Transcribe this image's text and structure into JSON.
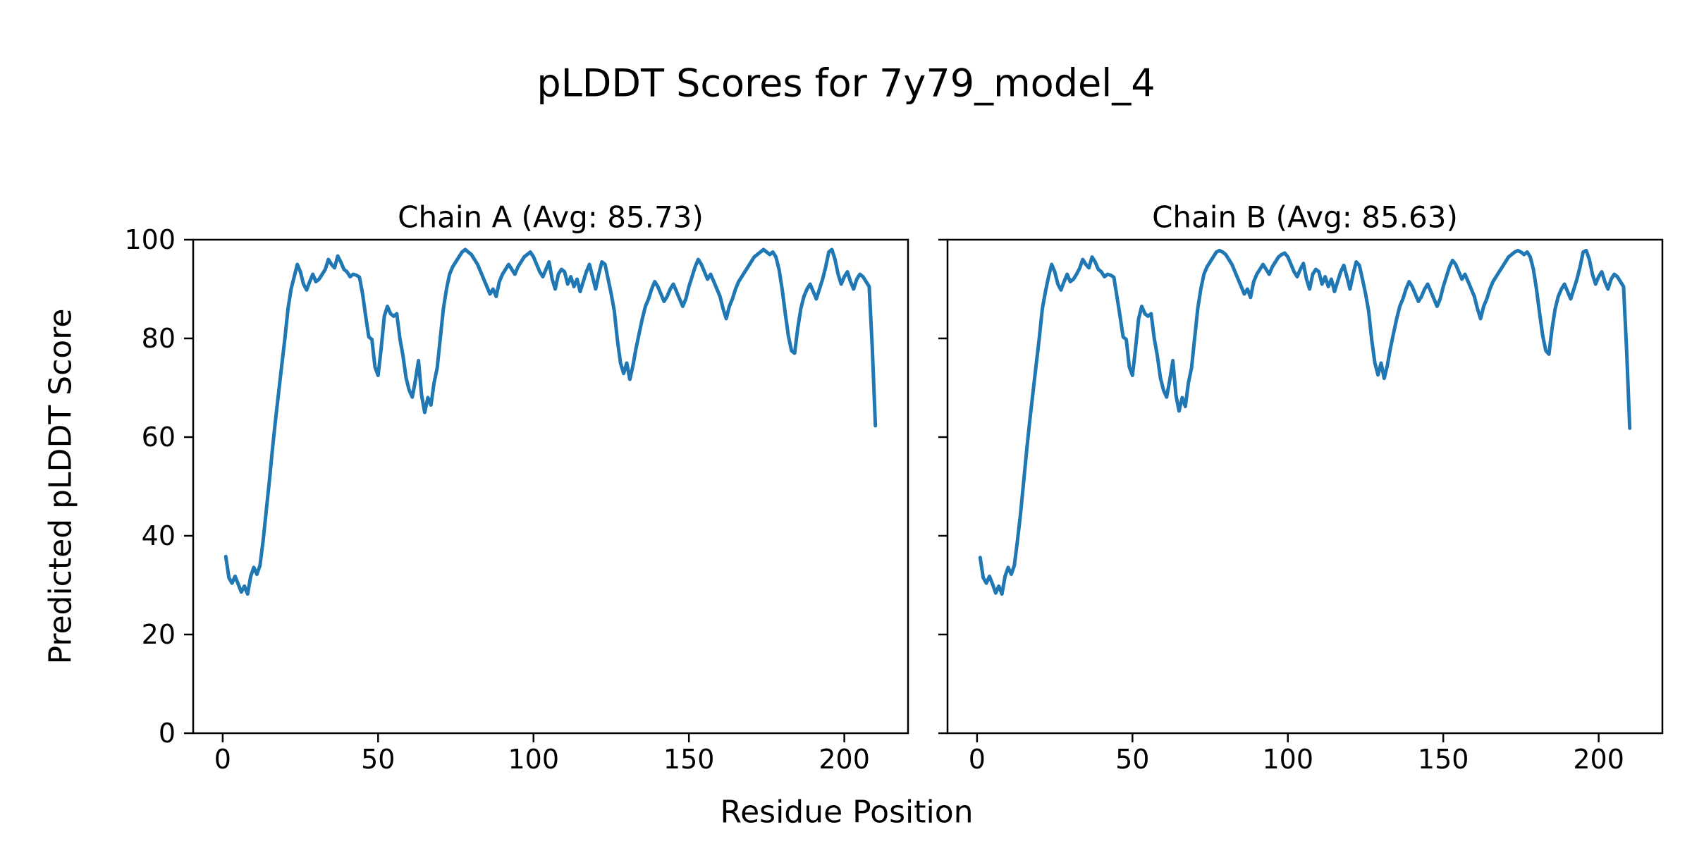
{
  "figure": {
    "title": "pLDDT Scores for 7y79_model_4",
    "xlabel": "Residue Position",
    "ylabel": "Predicted pLDDT Score",
    "background_color": "#ffffff",
    "text_color": "#000000",
    "spine_color": "#000000"
  },
  "chart_data": [
    {
      "type": "line",
      "title": "Chain A (Avg: 85.73)",
      "chain": "A",
      "average_plddt": 85.73,
      "line_color": "#1f77b4",
      "xlim": [
        -9.5,
        220.5
      ],
      "ylim": [
        0,
        100
      ],
      "xticks": [
        0,
        50,
        100,
        150,
        200
      ],
      "yticks": [
        0,
        20,
        40,
        60,
        80,
        100
      ],
      "show_ytick_labels": true,
      "x_start": 1,
      "values": [
        35.8,
        31.5,
        30.4,
        31.8,
        30.2,
        28.6,
        29.8,
        28.2,
        31.8,
        33.6,
        32.2,
        34.0,
        39.0,
        45.0,
        51.0,
        57.5,
        63.5,
        69.0,
        74.5,
        80.0,
        86.0,
        90.0,
        92.5,
        95.0,
        93.5,
        91.0,
        89.8,
        91.5,
        93.0,
        91.5,
        92.0,
        93.0,
        94.0,
        96.0,
        95.0,
        94.3,
        96.7,
        95.5,
        94.0,
        93.5,
        92.5,
        93.0,
        92.8,
        92.4,
        89.0,
        84.5,
        80.3,
        79.8,
        74.2,
        72.5,
        78.0,
        84.5,
        86.5,
        85.0,
        84.5,
        85.0,
        80.0,
        76.5,
        72.0,
        69.5,
        68.1,
        71.5,
        75.5,
        68.5,
        65.0,
        68.0,
        66.5,
        71.0,
        74.0,
        80.0,
        86.0,
        90.0,
        93.0,
        94.5,
        95.5,
        96.5,
        97.5,
        98.0,
        97.5,
        97.0,
        96.0,
        95.0,
        93.5,
        92.0,
        90.5,
        89.0,
        90.0,
        88.5,
        91.5,
        93.0,
        94.0,
        95.0,
        94.0,
        93.0,
        94.5,
        95.5,
        96.5,
        97.0,
        97.5,
        96.5,
        95.0,
        93.5,
        92.5,
        94.0,
        95.5,
        92.0,
        90.0,
        93.0,
        94.0,
        93.5,
        91.0,
        92.5,
        90.5,
        92.0,
        89.5,
        91.5,
        93.5,
        95.0,
        92.5,
        90.0,
        93.0,
        95.5,
        95.0,
        92.0,
        89.0,
        85.5,
        79.6,
        75.0,
        72.9,
        75.0,
        71.7,
        74.5,
        78.0,
        81.0,
        84.0,
        86.5,
        88.0,
        90.0,
        91.5,
        90.5,
        89.0,
        87.5,
        88.5,
        90.0,
        91.0,
        89.5,
        88.0,
        86.5,
        88.0,
        90.5,
        92.5,
        94.5,
        96.0,
        95.0,
        93.5,
        92.0,
        93.0,
        91.5,
        90.0,
        88.5,
        86.0,
        84.0,
        86.5,
        88.0,
        90.0,
        91.5,
        92.5,
        93.5,
        94.5,
        95.5,
        96.5,
        97.0,
        97.5,
        98.0,
        97.5,
        97.0,
        97.5,
        96.5,
        94.0,
        90.0,
        85.0,
        80.5,
        77.5,
        77.0,
        82.0,
        86.0,
        88.5,
        90.0,
        91.0,
        89.5,
        88.0,
        90.0,
        92.0,
        94.5,
        97.5,
        98.0,
        96.0,
        93.0,
        91.0,
        92.5,
        93.5,
        91.5,
        90.0,
        92.0,
        93.0,
        92.5,
        91.5,
        90.5,
        78.0,
        62.3
      ]
    },
    {
      "type": "line",
      "title": "Chain B (Avg: 85.63)",
      "chain": "B",
      "average_plddt": 85.63,
      "line_color": "#1f77b4",
      "xlim": [
        -9.5,
        220.5
      ],
      "ylim": [
        0,
        100
      ],
      "xticks": [
        0,
        50,
        100,
        150,
        200
      ],
      "yticks": [
        0,
        20,
        40,
        60,
        80,
        100
      ],
      "show_ytick_labels": false,
      "x_start": 1,
      "values": [
        35.6,
        31.5,
        30.4,
        31.8,
        30.2,
        28.4,
        29.8,
        28.2,
        31.8,
        33.6,
        32.2,
        34.0,
        39.0,
        44.5,
        51.0,
        57.5,
        63.5,
        69.0,
        74.5,
        80.0,
        86.0,
        89.5,
        92.5,
        95.0,
        93.5,
        91.0,
        89.8,
        91.5,
        93.0,
        91.5,
        92.0,
        93.0,
        94.2,
        96.0,
        95.0,
        94.3,
        96.5,
        95.5,
        94.0,
        93.5,
        92.5,
        93.0,
        92.8,
        92.4,
        88.5,
        84.5,
        80.3,
        79.8,
        74.2,
        72.5,
        78.0,
        84.0,
        86.5,
        85.0,
        84.5,
        85.0,
        80.0,
        76.5,
        72.0,
        69.5,
        68.1,
        71.5,
        75.5,
        68.5,
        65.3,
        68.0,
        66.2,
        71.0,
        74.0,
        80.0,
        86.0,
        90.0,
        93.0,
        94.5,
        95.5,
        96.5,
        97.5,
        97.8,
        97.5,
        97.0,
        96.0,
        95.0,
        93.5,
        92.0,
        90.5,
        89.0,
        90.0,
        88.3,
        91.5,
        93.0,
        94.0,
        95.0,
        94.0,
        93.0,
        94.5,
        95.5,
        96.5,
        97.0,
        97.3,
        96.5,
        95.0,
        93.5,
        92.5,
        94.0,
        95.2,
        92.0,
        90.0,
        93.0,
        94.0,
        93.5,
        91.0,
        92.5,
        90.5,
        92.0,
        89.5,
        91.5,
        93.5,
        94.8,
        92.5,
        90.0,
        93.0,
        95.5,
        94.8,
        92.0,
        89.0,
        85.5,
        79.6,
        75.0,
        72.6,
        75.0,
        71.9,
        74.5,
        78.0,
        81.0,
        84.0,
        86.5,
        88.0,
        90.0,
        91.5,
        90.5,
        89.0,
        87.5,
        88.5,
        90.0,
        91.0,
        89.5,
        88.0,
        86.5,
        88.0,
        90.5,
        92.5,
        94.5,
        95.8,
        95.0,
        93.5,
        92.0,
        93.0,
        91.5,
        90.0,
        88.5,
        86.0,
        84.0,
        86.5,
        88.0,
        90.0,
        91.5,
        92.5,
        93.5,
        94.5,
        95.5,
        96.5,
        97.0,
        97.5,
        97.8,
        97.5,
        97.0,
        97.5,
        96.5,
        94.0,
        90.0,
        85.0,
        80.5,
        77.5,
        76.8,
        82.0,
        86.0,
        88.5,
        90.0,
        91.0,
        89.5,
        88.0,
        90.0,
        92.0,
        94.5,
        97.5,
        97.8,
        96.0,
        93.0,
        91.0,
        92.5,
        93.5,
        91.5,
        90.0,
        92.0,
        93.0,
        92.5,
        91.5,
        90.5,
        77.5,
        61.8
      ]
    }
  ]
}
